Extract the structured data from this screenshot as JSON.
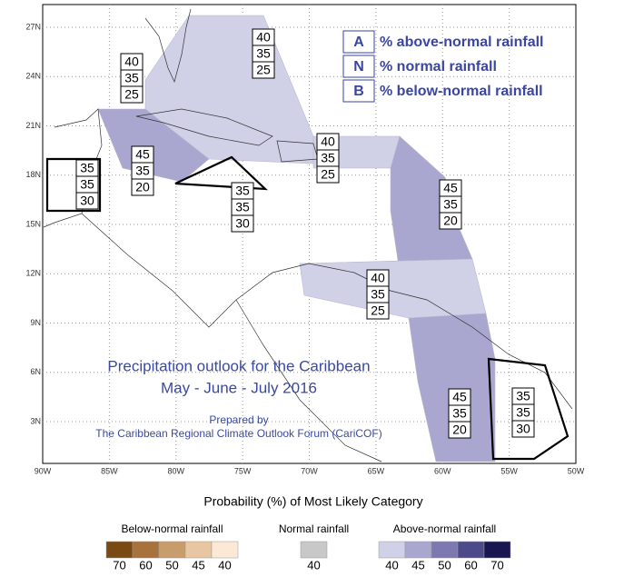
{
  "map": {
    "title": "Precipitation outlook for the Caribbean",
    "subtitle": "May - June - July 2016",
    "credit_1": "Prepared by",
    "credit_2": "The Caribbean Regional Climate Outlook Forum (CariCOF)",
    "lon_ticks": [
      "90W",
      "85W",
      "80W",
      "75W",
      "70W",
      "65W",
      "60W",
      "55W",
      "50W"
    ],
    "lat_ticks": [
      "3N",
      "6N",
      "9N",
      "12N",
      "15N",
      "18N",
      "21N",
      "24N",
      "27N"
    ],
    "key": [
      {
        "letter": "A",
        "text": "% above-normal rainfall"
      },
      {
        "letter": "N",
        "text": "% normal rainfall"
      },
      {
        "letter": "B",
        "text": "% below-normal rainfall"
      }
    ],
    "regions": [
      {
        "values": [
          40,
          35,
          25
        ]
      },
      {
        "values": [
          40,
          35,
          25
        ]
      },
      {
        "values": [
          45,
          35,
          20
        ]
      },
      {
        "values": [
          35,
          35,
          30
        ]
      },
      {
        "values": [
          35,
          35,
          30
        ]
      },
      {
        "values": [
          40,
          35,
          25
        ]
      },
      {
        "values": [
          45,
          35,
          20
        ]
      },
      {
        "values": [
          40,
          35,
          25
        ]
      },
      {
        "values": [
          45,
          35,
          20
        ]
      },
      {
        "values": [
          35,
          35,
          30
        ]
      }
    ]
  },
  "legend": {
    "title": "Probability (%) of Most Likely Category",
    "groups": [
      {
        "label": "Below-normal rainfall",
        "levels": [
          {
            "value": 70,
            "color": "#7a4a14"
          },
          {
            "value": 60,
            "color": "#a8723c"
          },
          {
            "value": 50,
            "color": "#c99c6c"
          },
          {
            "value": 45,
            "color": "#e8c6a2"
          },
          {
            "value": 40,
            "color": "#fbe9d6"
          }
        ]
      },
      {
        "label": "Normal rainfall",
        "levels": [
          {
            "value": 40,
            "color": "#c8c8c8"
          }
        ]
      },
      {
        "label": "Above-normal rainfall",
        "levels": [
          {
            "value": 40,
            "color": "#d0d0e6"
          },
          {
            "value": 45,
            "color": "#a9a7cf"
          },
          {
            "value": 50,
            "color": "#7d79b0"
          },
          {
            "value": 60,
            "color": "#4d4a8a"
          },
          {
            "value": 70,
            "color": "#1a1650"
          }
        ]
      }
    ]
  }
}
